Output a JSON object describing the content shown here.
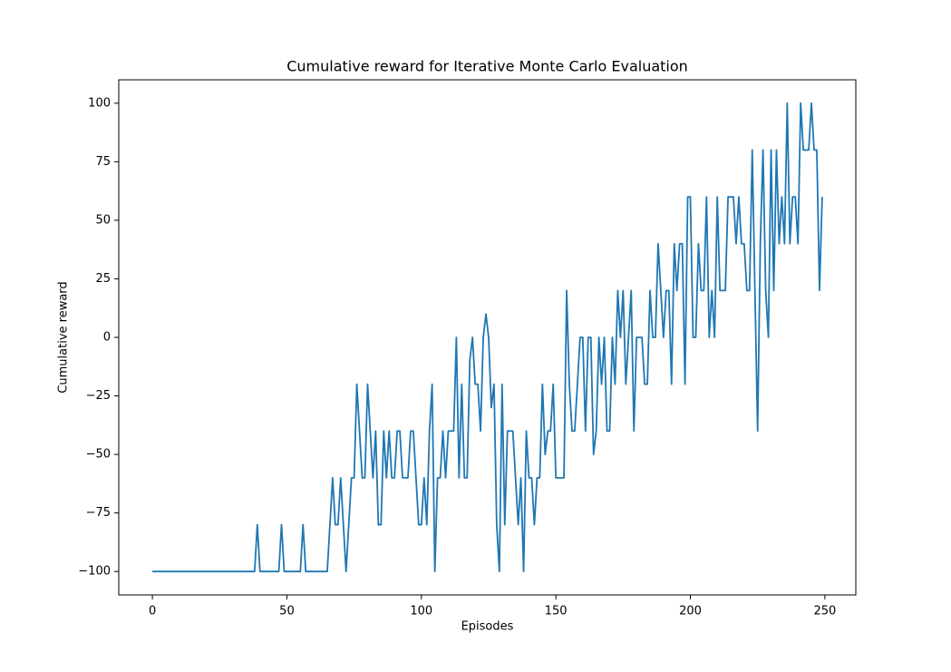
{
  "chart_data": {
    "type": "line",
    "title": "Cumulative reward for Iterative Monte Carlo Evaluation",
    "x_label": "Episodes",
    "y_label": "Cumulative reward",
    "xlim": [
      -12.5,
      261.5
    ],
    "ylim": [
      -110,
      110
    ],
    "xticks": [
      0,
      50,
      100,
      150,
      200,
      250
    ],
    "yticks": [
      {
        "value": -100,
        "label": "−100"
      },
      {
        "value": -75,
        "label": "−75"
      },
      {
        "value": -50,
        "label": "−50"
      },
      {
        "value": -25,
        "label": "−25"
      },
      0,
      25,
      50,
      75,
      100
    ],
    "grid": false,
    "x": [
      0,
      1,
      2,
      3,
      4,
      5,
      6,
      7,
      8,
      9,
      10,
      11,
      12,
      13,
      14,
      15,
      16,
      17,
      18,
      19,
      20,
      21,
      22,
      23,
      24,
      25,
      26,
      27,
      28,
      29,
      30,
      31,
      32,
      33,
      34,
      35,
      36,
      37,
      38,
      39,
      40,
      41,
      42,
      43,
      44,
      45,
      46,
      47,
      48,
      49,
      50,
      51,
      52,
      53,
      54,
      55,
      56,
      57,
      58,
      59,
      60,
      61,
      62,
      63,
      64,
      65,
      66,
      67,
      68,
      69,
      70,
      71,
      72,
      73,
      74,
      75,
      76,
      77,
      78,
      79,
      80,
      81,
      82,
      83,
      84,
      85,
      86,
      87,
      88,
      89,
      90,
      91,
      92,
      93,
      94,
      95,
      96,
      97,
      98,
      99,
      100,
      101,
      102,
      103,
      104,
      105,
      106,
      107,
      108,
      109,
      110,
      111,
      112,
      113,
      114,
      115,
      116,
      117,
      118,
      119,
      120,
      121,
      122,
      123,
      124,
      125,
      126,
      127,
      128,
      129,
      130,
      131,
      132,
      133,
      134,
      135,
      136,
      137,
      138,
      139,
      140,
      141,
      142,
      143,
      144,
      145,
      146,
      147,
      148,
      149,
      150,
      151,
      152,
      153,
      154,
      155,
      156,
      157,
      158,
      159,
      160,
      161,
      162,
      163,
      164,
      165,
      166,
      167,
      168,
      169,
      170,
      171,
      172,
      173,
      174,
      175,
      176,
      177,
      178,
      179,
      180,
      181,
      182,
      183,
      184,
      185,
      186,
      187,
      188,
      189,
      190,
      191,
      192,
      193,
      194,
      195,
      196,
      197,
      198,
      199,
      200,
      201,
      202,
      203,
      204,
      205,
      206,
      207,
      208,
      209,
      210,
      211,
      212,
      213,
      214,
      215,
      216,
      217,
      218,
      219,
      220,
      221,
      222,
      223,
      224,
      225,
      226,
      227,
      228,
      229,
      230,
      231,
      232,
      233,
      234,
      235,
      236,
      237,
      238,
      239,
      240,
      241,
      242,
      243,
      244,
      245,
      246,
      247,
      248,
      249
    ],
    "series": [
      {
        "color": "#1f77b4",
        "values": [
          -100,
          -100,
          -100,
          -100,
          -100,
          -100,
          -100,
          -100,
          -100,
          -100,
          -100,
          -100,
          -100,
          -100,
          -100,
          -100,
          -100,
          -100,
          -100,
          -100,
          -100,
          -100,
          -100,
          -100,
          -100,
          -100,
          -100,
          -100,
          -100,
          -100,
          -100,
          -100,
          -100,
          -100,
          -100,
          -100,
          -100,
          -100,
          -100,
          -80,
          -100,
          -100,
          -100,
          -100,
          -100,
          -100,
          -100,
          -100,
          -80,
          -100,
          -100,
          -100,
          -100,
          -100,
          -100,
          -100,
          -80,
          -100,
          -100,
          -100,
          -100,
          -100,
          -100,
          -100,
          -100,
          -100,
          -80,
          -60,
          -80,
          -80,
          -60,
          -80,
          -100,
          -80,
          -60,
          -60,
          -20,
          -40,
          -60,
          -60,
          -20,
          -40,
          -60,
          -40,
          -80,
          -80,
          -40,
          -60,
          -40,
          -60,
          -60,
          -40,
          -40,
          -60,
          -60,
          -60,
          -40,
          -40,
          -60,
          -80,
          -80,
          -60,
          -80,
          -40,
          -20,
          -100,
          -60,
          -60,
          -40,
          -60,
          -40,
          -40,
          -40,
          0,
          -60,
          -20,
          -60,
          -60,
          -10,
          0,
          -20,
          -20,
          -40,
          0,
          10,
          0,
          -30,
          -20,
          -80,
          -100,
          -20,
          -80,
          -40,
          -40,
          -40,
          -60,
          -80,
          -60,
          -100,
          -40,
          -60,
          -60,
          -80,
          -60,
          -60,
          -20,
          -50,
          -40,
          -40,
          -20,
          -60,
          -60,
          -60,
          -60,
          20,
          -20,
          -40,
          -40,
          -20,
          0,
          0,
          -40,
          0,
          0,
          -50,
          -40,
          0,
          -20,
          0,
          -40,
          -40,
          0,
          -20,
          20,
          0,
          20,
          -20,
          0,
          20,
          -40,
          0,
          0,
          0,
          -20,
          -20,
          20,
          0,
          0,
          40,
          20,
          0,
          20,
          20,
          -20,
          40,
          20,
          40,
          40,
          -20,
          60,
          60,
          0,
          0,
          40,
          20,
          20,
          60,
          0,
          20,
          0,
          60,
          20,
          20,
          20,
          60,
          60,
          60,
          40,
          60,
          40,
          40,
          20,
          20,
          80,
          20,
          -40,
          40,
          80,
          20,
          0,
          80,
          20,
          80,
          40,
          60,
          40,
          100,
          40,
          60,
          60,
          40,
          100,
          80,
          80,
          80,
          100,
          80,
          80,
          20,
          60
        ]
      }
    ]
  }
}
